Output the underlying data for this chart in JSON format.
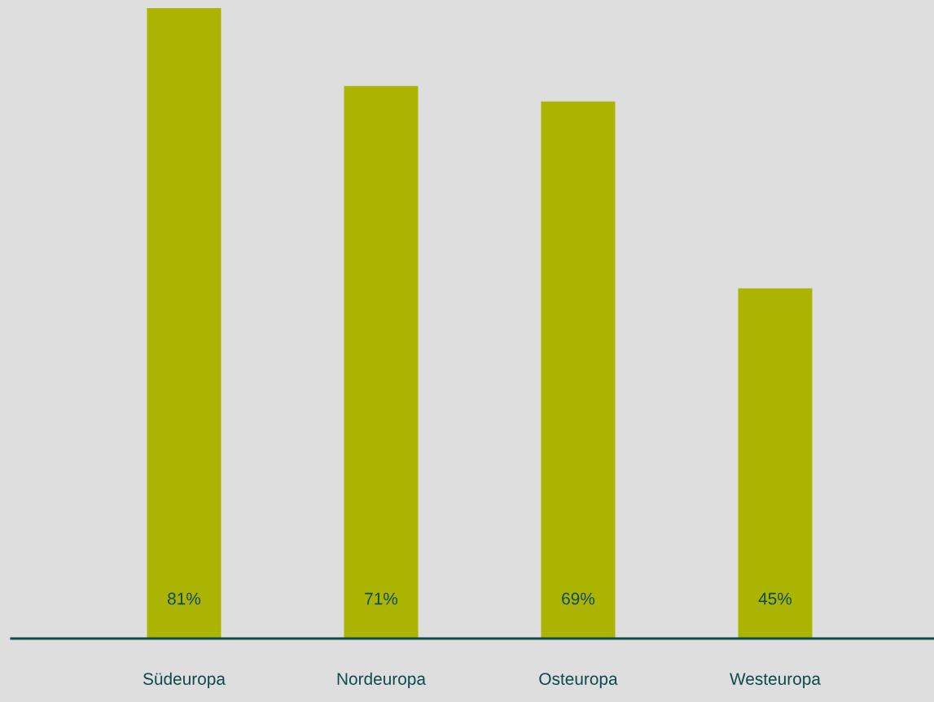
{
  "chart_data": {
    "type": "bar",
    "categories": [
      "Südeuropa",
      "Nordeuropa",
      "Osteuropa",
      "Westeuropa"
    ],
    "values": [
      81,
      71,
      69,
      45
    ],
    "value_labels": [
      "81%",
      "71%",
      "69%",
      "45%"
    ],
    "color": "#abb400",
    "grid": false,
    "legend": false
  }
}
